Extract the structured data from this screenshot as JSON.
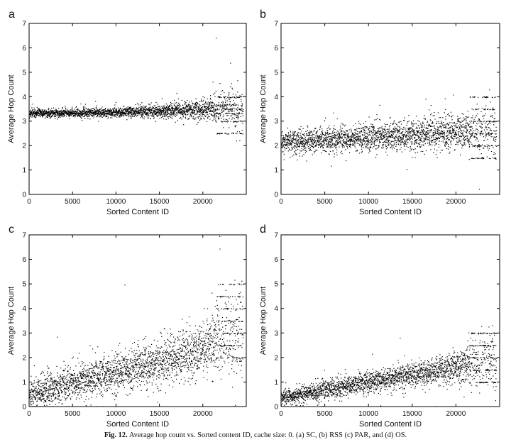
{
  "caption": {
    "label": "Fig. 12.",
    "text": "Average hop count vs. Sorted content ID, cache size: 0. (a) SC, (b) RSS (c) PAR, and (d) OS."
  },
  "chart_data": [
    {
      "type": "scatter",
      "panel": "a",
      "xlabel": "Sorted Content ID",
      "ylabel": "Average Hop Count",
      "xlim": [
        0,
        25000
      ],
      "ylim": [
        0,
        7
      ],
      "xticks": [
        0,
        5000,
        10000,
        15000,
        20000
      ],
      "yticks": [
        0,
        1,
        2,
        3,
        4,
        5,
        6,
        7
      ],
      "grid": false,
      "trend": {
        "x": [
          0,
          5000,
          10000,
          15000,
          20000,
          24000
        ],
        "y": [
          3.35,
          3.35,
          3.37,
          3.42,
          3.5,
          3.55
        ]
      },
      "spread": [
        0.08,
        0.08,
        0.1,
        0.14,
        0.2,
        0.55
      ],
      "point_count": 2600,
      "discrete_levels_from": 21500,
      "discrete_levels": [
        2.5,
        3,
        3.33,
        3.5,
        3.67,
        4
      ]
    },
    {
      "type": "scatter",
      "panel": "b",
      "xlabel": "Sorted Content ID",
      "ylabel": "Average Hop Count",
      "xlim": [
        0,
        25000
      ],
      "ylim": [
        0,
        7
      ],
      "xticks": [
        0,
        5000,
        10000,
        15000,
        20000
      ],
      "yticks": [
        0,
        1,
        2,
        3,
        4,
        5,
        6,
        7
      ],
      "grid": false,
      "trend": {
        "x": [
          0,
          5000,
          10000,
          15000,
          20000,
          24000
        ],
        "y": [
          2.15,
          2.25,
          2.35,
          2.45,
          2.6,
          2.7
        ]
      },
      "spread": [
        0.25,
        0.25,
        0.28,
        0.3,
        0.35,
        0.55
      ],
      "point_count": 2600,
      "discrete_levels_from": 21500,
      "discrete_levels": [
        1.5,
        2,
        2.5,
        3,
        3.5,
        4
      ]
    },
    {
      "type": "scatter",
      "panel": "c",
      "xlabel": "Sorted Content ID",
      "ylabel": "Average Hop Count",
      "xlim": [
        0,
        25000
      ],
      "ylim": [
        0,
        7
      ],
      "xticks": [
        0,
        5000,
        10000,
        15000,
        20000
      ],
      "yticks": [
        0,
        1,
        2,
        3,
        4,
        5,
        6,
        7
      ],
      "grid": false,
      "trend": {
        "x": [
          0,
          5000,
          10000,
          15000,
          20000,
          24000
        ],
        "y": [
          0.45,
          1.05,
          1.45,
          1.85,
          2.4,
          3.0
        ]
      },
      "spread": [
        0.3,
        0.35,
        0.4,
        0.45,
        0.55,
        0.9
      ],
      "point_count": 2600,
      "discrete_levels_from": 21500,
      "discrete_levels": [
        2,
        2.5,
        3,
        3.5,
        4,
        4.5,
        5
      ]
    },
    {
      "type": "scatter",
      "panel": "d",
      "xlabel": "Sorted Content ID",
      "ylabel": "Average Hop Count",
      "xlim": [
        0,
        25000
      ],
      "ylim": [
        0,
        7
      ],
      "xticks": [
        0,
        5000,
        10000,
        15000,
        20000
      ],
      "yticks": [
        0,
        1,
        2,
        3,
        4,
        5,
        6,
        7
      ],
      "grid": false,
      "trend": {
        "x": [
          0,
          5000,
          10000,
          15000,
          20000,
          24000
        ],
        "y": [
          0.35,
          0.7,
          1.0,
          1.3,
          1.6,
          1.9
        ]
      },
      "spread": [
        0.15,
        0.2,
        0.22,
        0.25,
        0.3,
        0.6
      ],
      "point_count": 2600,
      "discrete_levels_from": 21500,
      "discrete_levels": [
        1,
        1.5,
        2,
        2.5,
        3
      ]
    }
  ]
}
